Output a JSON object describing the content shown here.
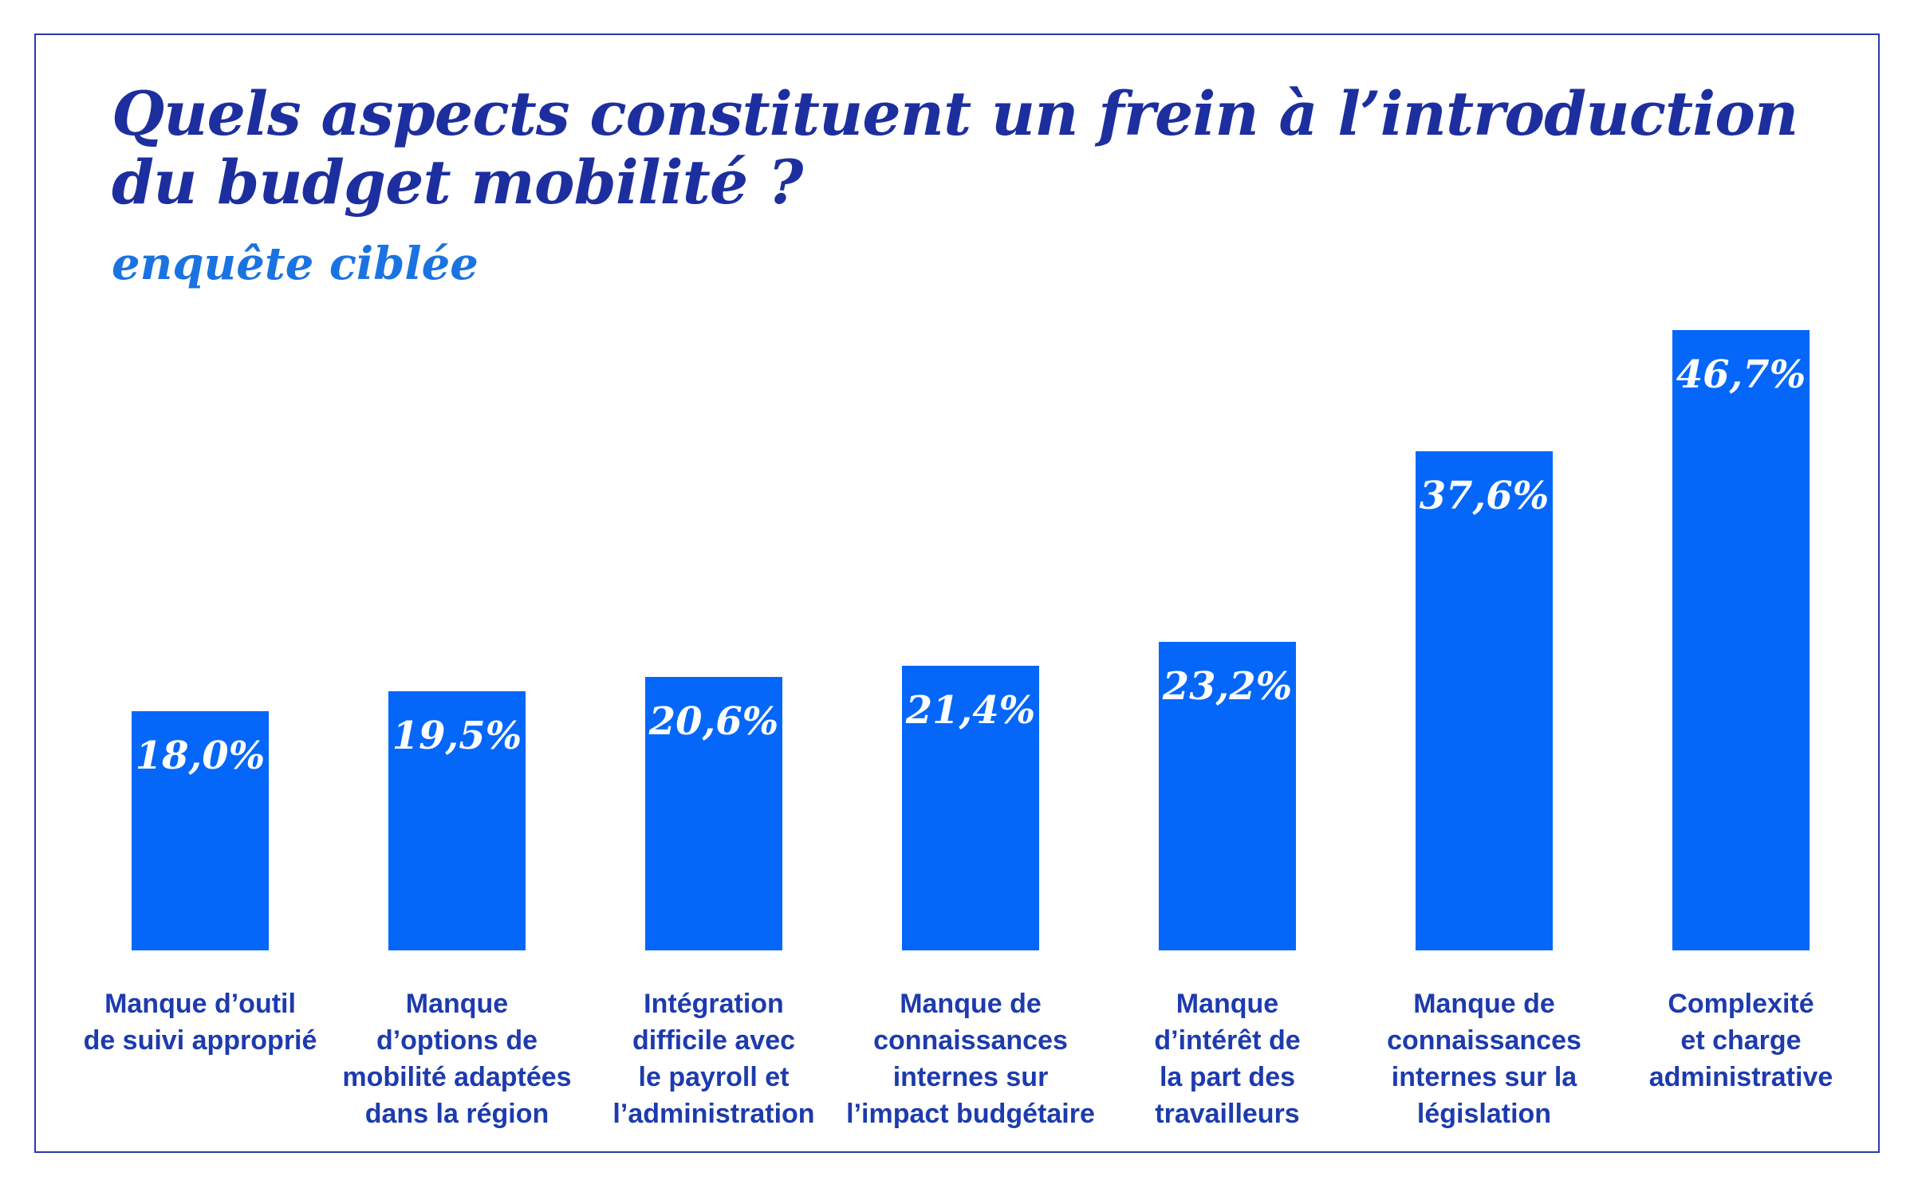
{
  "header": {
    "title_lines": [
      "Quels aspects constituent un frein à l’introduction",
      "du budget mobilité ?"
    ],
    "subtitle": "enquête ciblée"
  },
  "chart_data": {
    "type": "bar",
    "title": "Quels aspects constituent un frein à l’introduction du budget mobilité ?",
    "subtitle": "enquête ciblée",
    "categories": [
      "Manque d’outil de suivi approprié",
      "Manque d’options de mobilité adaptées dans la région",
      "Intégration difficile avec le payroll et l’administration",
      "Manque de connaissances internes sur l’impact budgétaire",
      "Manque d’intérêt de la part des travailleurs",
      "Manque de connaissances internes sur la législation",
      "Complexité et charge administrative"
    ],
    "category_lines": [
      [
        "Manque d’outil",
        "de suivi approprié"
      ],
      [
        "Manque",
        "d’options de",
        "mobilité adaptées",
        "dans la région"
      ],
      [
        "Intégration",
        "difficile avec",
        "le payroll et",
        "l’administration"
      ],
      [
        "Manque de",
        "connaissances",
        "internes sur",
        "l’impact budgétaire"
      ],
      [
        "Manque",
        "d’intérêt de",
        "la part des",
        "travailleurs"
      ],
      [
        "Manque de",
        "connaissances",
        "internes sur la",
        "législation"
      ],
      [
        "Complexité",
        "et charge",
        "administrative"
      ]
    ],
    "values": [
      18.0,
      19.5,
      20.6,
      21.4,
      23.2,
      37.6,
      46.7
    ],
    "values_display": [
      "18,0%",
      "19,5%",
      "20,6%",
      "21,4%",
      "23,2%",
      "37,6%",
      "46,7%"
    ],
    "unit": "%",
    "ylim": [
      0,
      50
    ],
    "grid": false,
    "legend": "none",
    "bar_orientation": "vertical",
    "colors": {
      "bar": "#0567FA",
      "title": "#1D2F9F",
      "subtitle": "#1A73E1",
      "category": "#1D3BAE",
      "value_label": "#FFFFFF",
      "frame": "#2B3AAD"
    }
  }
}
